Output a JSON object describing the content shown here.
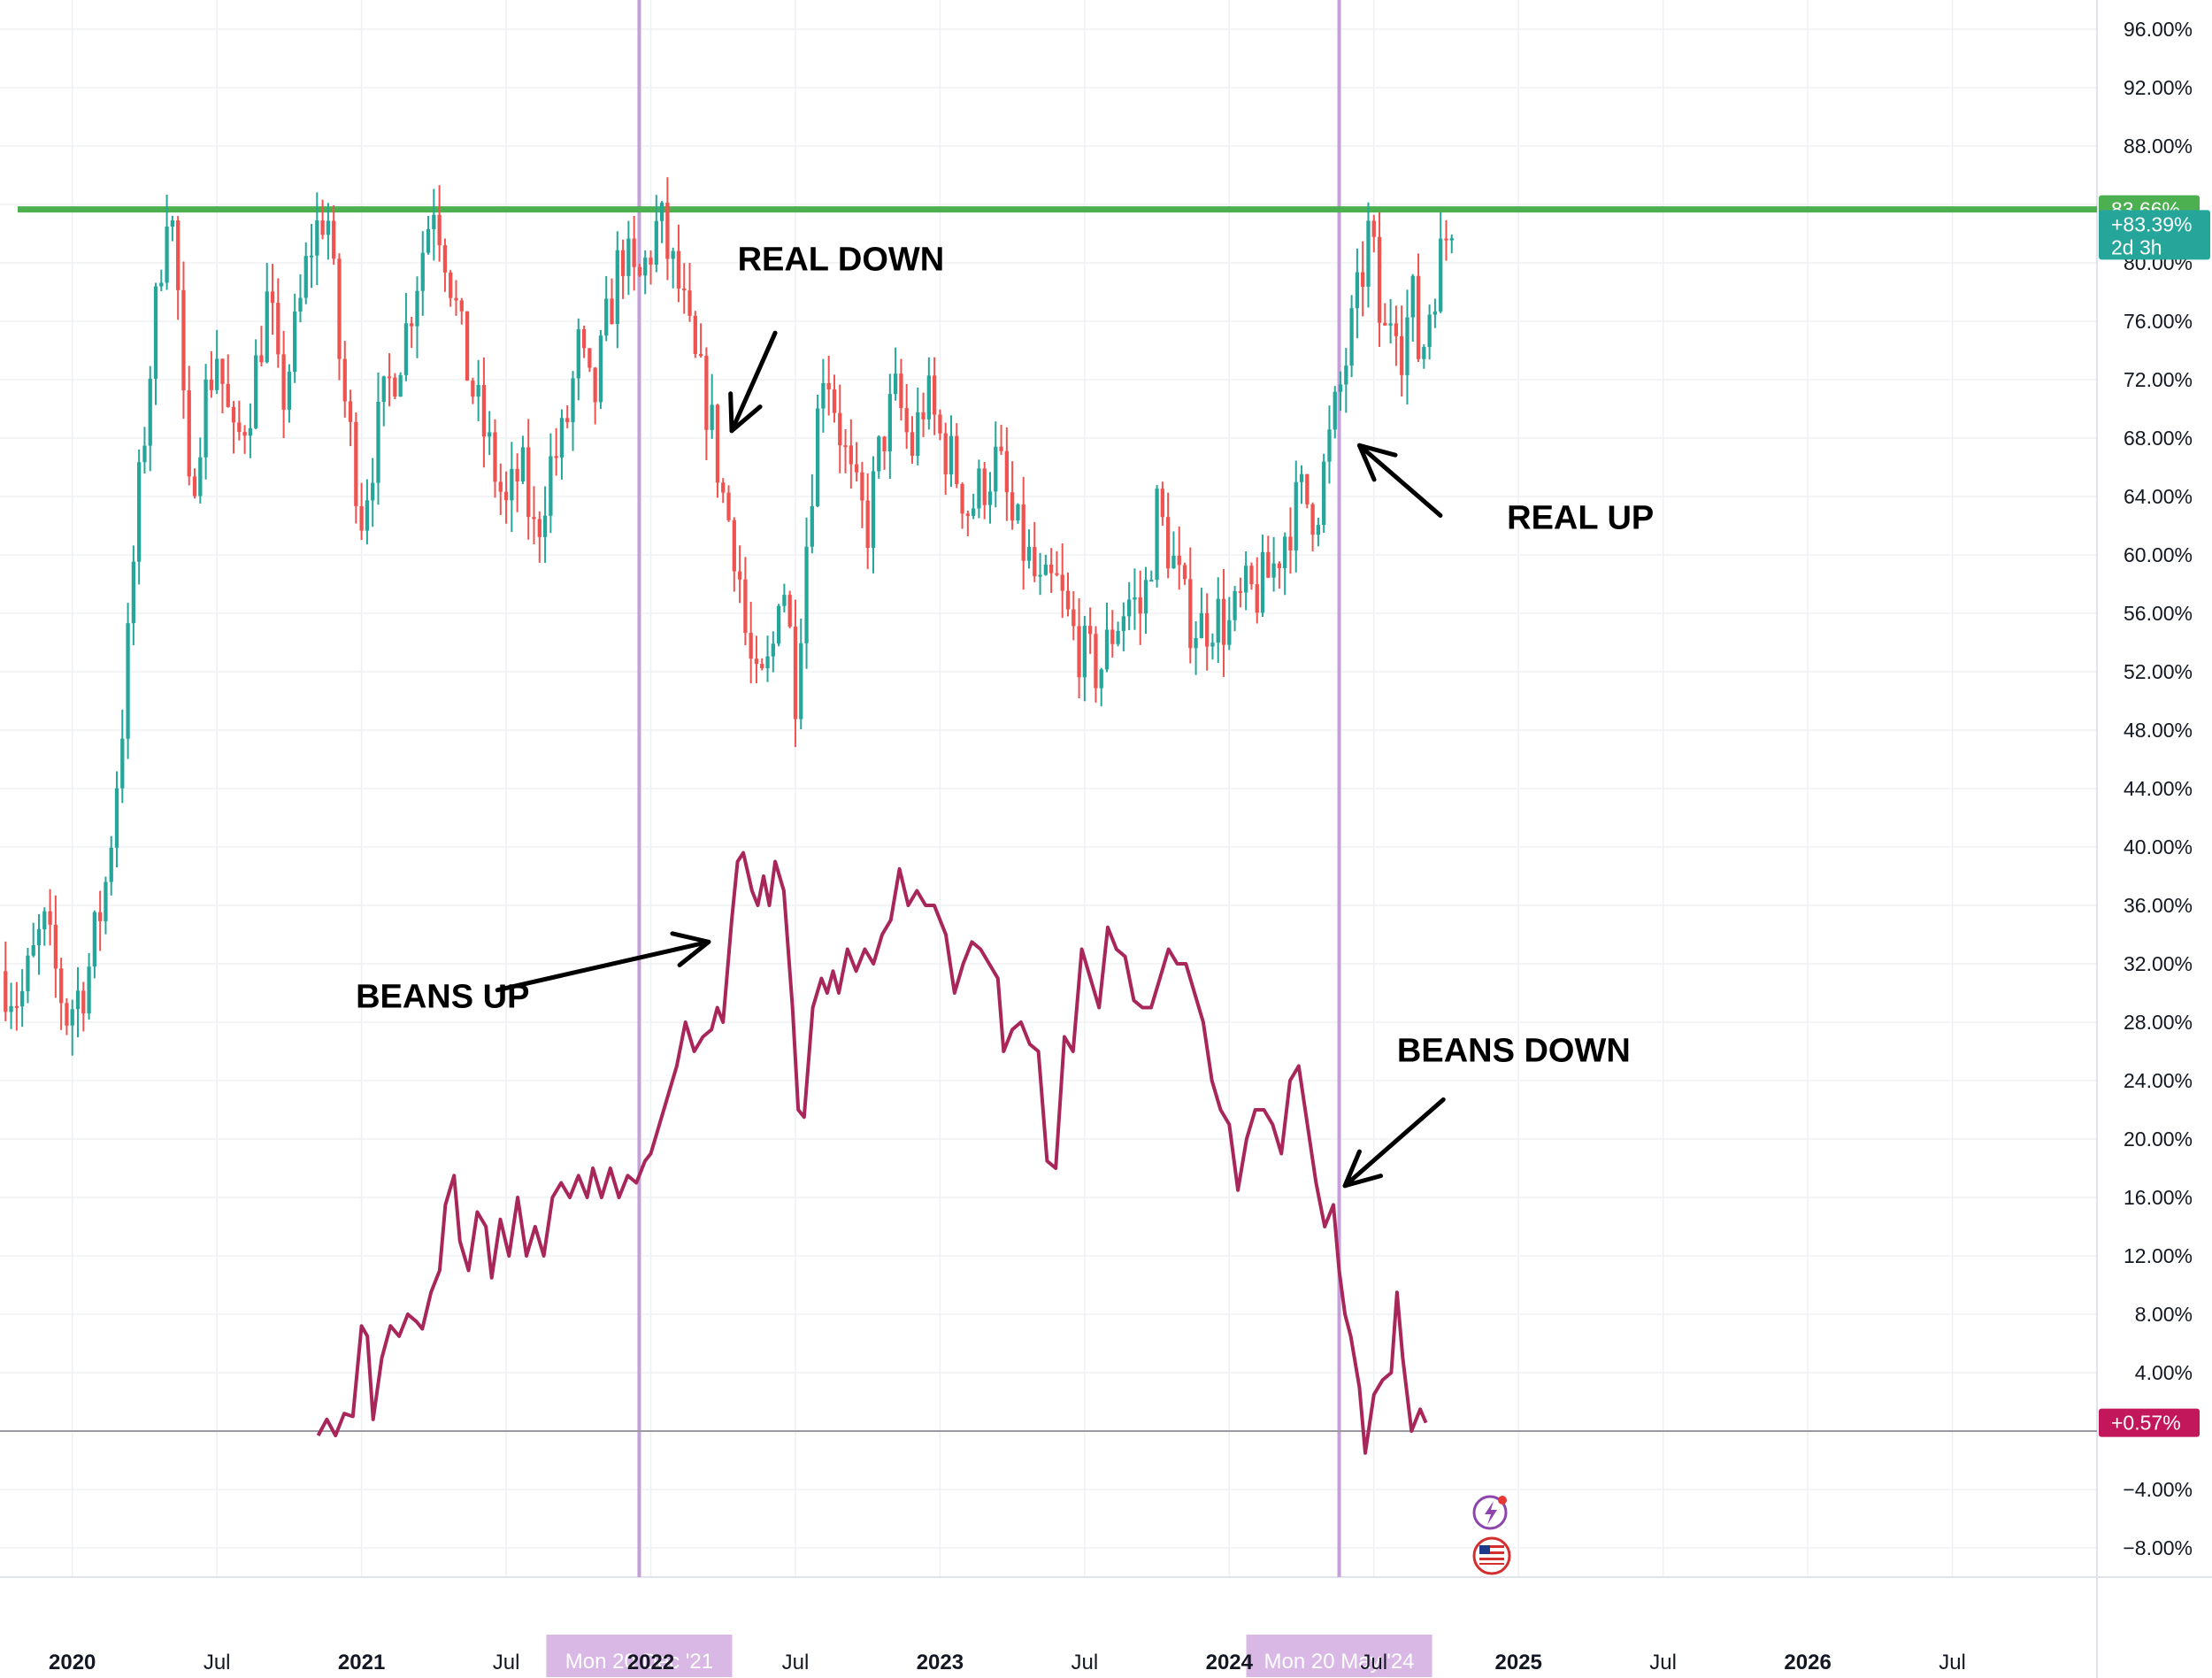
{
  "chart_data": {
    "type": "line",
    "y_axis": {
      "unit": "%",
      "ylim": [
        -10,
        98
      ],
      "ticks": [
        -8,
        -4,
        4,
        8,
        12,
        16,
        20,
        24,
        28,
        32,
        36,
        40,
        44,
        48,
        52,
        56,
        60,
        64,
        68,
        72,
        76,
        80,
        84,
        88,
        92,
        96
      ],
      "tick_labels": [
        "−8.00%",
        "−4.00%",
        "4.00%",
        "8.00%",
        "12.00%",
        "16.00%",
        "20.00%",
        "24.00%",
        "28.00%",
        "32.00%",
        "36.00%",
        "40.00%",
        "44.00%",
        "48.00%",
        "52.00%",
        "56.00%",
        "60.00%",
        "64.00%",
        "68.00%",
        "72.00%",
        "76.00%",
        "80.00%",
        "84.00%",
        "88.00%",
        "92.00%",
        "96.00%"
      ]
    },
    "x_axis": {
      "xlim": [
        2019.75,
        2027.0
      ],
      "ticks": [
        {
          "x": 2020.0,
          "label": "2020",
          "bold": true
        },
        {
          "x": 2020.5,
          "label": "Jul",
          "bold": false
        },
        {
          "x": 2021.0,
          "label": "2021",
          "bold": true
        },
        {
          "x": 2021.5,
          "label": "Jul",
          "bold": false
        },
        {
          "x": 2022.0,
          "label": "2022",
          "bold": true
        },
        {
          "x": 2022.5,
          "label": "Jul",
          "bold": false
        },
        {
          "x": 2023.0,
          "label": "2023",
          "bold": true
        },
        {
          "x": 2023.5,
          "label": "Jul",
          "bold": false
        },
        {
          "x": 2024.0,
          "label": "2024",
          "bold": true
        },
        {
          "x": 2024.5,
          "label": "Jul",
          "bold": false
        },
        {
          "x": 2025.0,
          "label": "2025",
          "bold": true
        },
        {
          "x": 2025.5,
          "label": "Jul",
          "bold": false
        },
        {
          "x": 2026.0,
          "label": "2026",
          "bold": true
        },
        {
          "x": 2026.5,
          "label": "Jul",
          "bold": false
        }
      ]
    },
    "grid": true,
    "series": [
      {
        "kind": "candlestick",
        "up_color": "#26a69a",
        "down_color": "#ef5350",
        "path": [
          [
            2019.75,
            31.5
          ],
          [
            2019.82,
            29.5
          ],
          [
            2019.9,
            34.5
          ],
          [
            2019.98,
            28.5
          ],
          [
            2020.05,
            31.0
          ],
          [
            2020.12,
            38.0
          ],
          [
            2020.18,
            50.0
          ],
          [
            2020.22,
            62.0
          ],
          [
            2020.27,
            73.0
          ],
          [
            2020.33,
            85.0
          ],
          [
            2020.36,
            80.0
          ],
          [
            2020.4,
            63.0
          ],
          [
            2020.45,
            70.0
          ],
          [
            2020.5,
            74.0
          ],
          [
            2020.56,
            67.0
          ],
          [
            2020.62,
            71.0
          ],
          [
            2020.68,
            78.0
          ],
          [
            2020.72,
            70.0
          ],
          [
            2020.78,
            76.0
          ],
          [
            2020.82,
            81.0
          ],
          [
            2020.88,
            84.0
          ],
          [
            2020.93,
            72.0
          ],
          [
            2021.0,
            63.0
          ],
          [
            2021.05,
            68.0
          ],
          [
            2021.1,
            72.0
          ],
          [
            2021.15,
            75.0
          ],
          [
            2021.2,
            80.0
          ],
          [
            2021.25,
            84.5
          ],
          [
            2021.3,
            80.0
          ],
          [
            2021.35,
            74.0
          ],
          [
            2021.4,
            70.0
          ],
          [
            2021.45,
            66.5
          ],
          [
            2021.5,
            63.0
          ],
          [
            2021.55,
            66.0
          ],
          [
            2021.6,
            61.0
          ],
          [
            2021.65,
            66.0
          ],
          [
            2021.7,
            68.0
          ],
          [
            2021.75,
            74.0
          ],
          [
            2021.8,
            70.0
          ],
          [
            2021.85,
            76.0
          ],
          [
            2021.9,
            81.0
          ],
          [
            2021.95,
            78.0
          ],
          [
            2022.0,
            81.0
          ],
          [
            2022.03,
            83.0
          ],
          [
            2022.06,
            80.5
          ],
          [
            2022.1,
            78.0
          ],
          [
            2022.15,
            73.0
          ],
          [
            2022.2,
            70.0
          ],
          [
            2022.25,
            64.0
          ],
          [
            2022.3,
            60.0
          ],
          [
            2022.33,
            54.0
          ],
          [
            2022.37,
            50.0
          ],
          [
            2022.42,
            53.0
          ],
          [
            2022.45,
            60.0
          ],
          [
            2022.5,
            51.0
          ],
          [
            2022.55,
            64.0
          ],
          [
            2022.6,
            74.0
          ],
          [
            2022.65,
            69.0
          ],
          [
            2022.7,
            64.0
          ],
          [
            2022.75,
            62.0
          ],
          [
            2022.8,
            68.0
          ],
          [
            2022.85,
            71.0
          ],
          [
            2022.9,
            67.0
          ],
          [
            2022.95,
            71.0
          ],
          [
            2023.0,
            68.0
          ],
          [
            2023.05,
            66.0
          ],
          [
            2023.1,
            63.0
          ],
          [
            2023.15,
            65.0
          ],
          [
            2023.2,
            66.5
          ],
          [
            2023.25,
            62.0
          ],
          [
            2023.3,
            60.0
          ],
          [
            2023.35,
            57.0
          ],
          [
            2023.4,
            58.0
          ],
          [
            2023.45,
            55.0
          ],
          [
            2023.5,
            53.0
          ],
          [
            2023.55,
            52.0
          ],
          [
            2023.6,
            55.0
          ],
          [
            2023.65,
            57.0
          ],
          [
            2023.7,
            56.0
          ],
          [
            2023.75,
            63.0
          ],
          [
            2023.8,
            60.0
          ],
          [
            2023.85,
            56.0
          ],
          [
            2023.9,
            55.0
          ],
          [
            2023.95,
            56.0
          ],
          [
            2024.0,
            55.0
          ],
          [
            2024.05,
            57.0
          ],
          [
            2024.1,
            57.5
          ],
          [
            2024.15,
            59.0
          ],
          [
            2024.2,
            62.0
          ],
          [
            2024.25,
            64.0
          ],
          [
            2024.3,
            63.0
          ],
          [
            2024.35,
            68.0
          ],
          [
            2024.4,
            73.0
          ],
          [
            2024.45,
            78.0
          ],
          [
            2024.48,
            82.0
          ],
          [
            2024.5,
            80.0
          ],
          [
            2024.53,
            74.0
          ],
          [
            2024.57,
            78.0
          ],
          [
            2024.6,
            74.0
          ],
          [
            2024.63,
            78.0
          ],
          [
            2024.66,
            73.0
          ],
          [
            2024.7,
            78.0
          ],
          [
            2024.74,
            81.0
          ],
          [
            2024.77,
            83.39
          ]
        ]
      },
      {
        "kind": "line",
        "color": "#a8265a",
        "path": [
          [
            2020.85,
            -0.3
          ],
          [
            2020.88,
            0.8
          ],
          [
            2020.91,
            -0.3
          ],
          [
            2020.94,
            1.2
          ],
          [
            2020.97,
            1.0
          ],
          [
            2021.0,
            7.2
          ],
          [
            2021.02,
            6.5
          ],
          [
            2021.04,
            0.8
          ],
          [
            2021.07,
            5.0
          ],
          [
            2021.1,
            7.2
          ],
          [
            2021.13,
            6.5
          ],
          [
            2021.16,
            8.0
          ],
          [
            2021.19,
            7.5
          ],
          [
            2021.21,
            7.0
          ],
          [
            2021.24,
            9.5
          ],
          [
            2021.27,
            11.0
          ],
          [
            2021.29,
            15.5
          ],
          [
            2021.32,
            17.5
          ],
          [
            2021.34,
            13.0
          ],
          [
            2021.37,
            11.0
          ],
          [
            2021.4,
            15.0
          ],
          [
            2021.43,
            14.0
          ],
          [
            2021.45,
            10.5
          ],
          [
            2021.48,
            14.5
          ],
          [
            2021.51,
            12.0
          ],
          [
            2021.54,
            16.0
          ],
          [
            2021.57,
            12.0
          ],
          [
            2021.6,
            14.0
          ],
          [
            2021.63,
            12.0
          ],
          [
            2021.66,
            16.0
          ],
          [
            2021.69,
            17.0
          ],
          [
            2021.72,
            16.0
          ],
          [
            2021.75,
            17.5
          ],
          [
            2021.78,
            16.0
          ],
          [
            2021.8,
            18.0
          ],
          [
            2021.83,
            16.0
          ],
          [
            2021.86,
            18.0
          ],
          [
            2021.89,
            16.0
          ],
          [
            2021.92,
            17.5
          ],
          [
            2021.95,
            17.0
          ],
          [
            2021.98,
            18.5
          ],
          [
            2022.0,
            19.0
          ],
          [
            2022.03,
            21.0
          ],
          [
            2022.06,
            23.0
          ],
          [
            2022.09,
            25.0
          ],
          [
            2022.12,
            28.0
          ],
          [
            2022.15,
            26.0
          ],
          [
            2022.18,
            27.0
          ],
          [
            2022.21,
            27.5
          ],
          [
            2022.23,
            29.0
          ],
          [
            2022.25,
            28.0
          ],
          [
            2022.28,
            35.0
          ],
          [
            2022.3,
            39.0
          ],
          [
            2022.32,
            39.6
          ],
          [
            2022.35,
            37.0
          ],
          [
            2022.37,
            36.0
          ],
          [
            2022.39,
            38.0
          ],
          [
            2022.41,
            36.0
          ],
          [
            2022.43,
            39.0
          ],
          [
            2022.46,
            37.0
          ],
          [
            2022.49,
            29.0
          ],
          [
            2022.51,
            22.0
          ],
          [
            2022.53,
            21.5
          ],
          [
            2022.56,
            29.0
          ],
          [
            2022.59,
            31.0
          ],
          [
            2022.61,
            30.0
          ],
          [
            2022.63,
            31.5
          ],
          [
            2022.65,
            30.0
          ],
          [
            2022.68,
            33.0
          ],
          [
            2022.71,
            31.5
          ],
          [
            2022.74,
            33.0
          ],
          [
            2022.77,
            32.0
          ],
          [
            2022.8,
            34.0
          ],
          [
            2022.83,
            35.0
          ],
          [
            2022.86,
            38.5
          ],
          [
            2022.89,
            36.0
          ],
          [
            2022.92,
            37.0
          ],
          [
            2022.95,
            36.0
          ],
          [
            2022.98,
            36.0
          ],
          [
            2023.02,
            34.0
          ],
          [
            2023.05,
            30.0
          ],
          [
            2023.08,
            32.0
          ],
          [
            2023.11,
            33.5
          ],
          [
            2023.14,
            33.0
          ],
          [
            2023.17,
            32.0
          ],
          [
            2023.2,
            31.0
          ],
          [
            2023.22,
            26.0
          ],
          [
            2023.25,
            27.5
          ],
          [
            2023.28,
            28.0
          ],
          [
            2023.31,
            26.5
          ],
          [
            2023.34,
            26.0
          ],
          [
            2023.37,
            18.5
          ],
          [
            2023.4,
            18.0
          ],
          [
            2023.43,
            27.0
          ],
          [
            2023.46,
            26.0
          ],
          [
            2023.49,
            33.0
          ],
          [
            2023.52,
            31.0
          ],
          [
            2023.55,
            29.0
          ],
          [
            2023.58,
            34.5
          ],
          [
            2023.61,
            33.0
          ],
          [
            2023.64,
            32.5
          ],
          [
            2023.67,
            29.5
          ],
          [
            2023.7,
            29.0
          ],
          [
            2023.73,
            29.0
          ],
          [
            2023.76,
            31.0
          ],
          [
            2023.79,
            33.0
          ],
          [
            2023.82,
            32.0
          ],
          [
            2023.85,
            32.0
          ],
          [
            2023.88,
            30.0
          ],
          [
            2023.91,
            28.0
          ],
          [
            2023.94,
            24.0
          ],
          [
            2023.97,
            22.0
          ],
          [
            2024.0,
            21.0
          ],
          [
            2024.03,
            16.5
          ],
          [
            2024.06,
            20.0
          ],
          [
            2024.09,
            22.0
          ],
          [
            2024.12,
            22.0
          ],
          [
            2024.15,
            21.0
          ],
          [
            2024.18,
            19.0
          ],
          [
            2024.21,
            24.0
          ],
          [
            2024.24,
            25.0
          ],
          [
            2024.27,
            21.0
          ],
          [
            2024.3,
            17.0
          ],
          [
            2024.33,
            14.0
          ],
          [
            2024.36,
            15.5
          ],
          [
            2024.38,
            11.0
          ],
          [
            2024.4,
            8.0
          ],
          [
            2024.42,
            6.5
          ],
          [
            2024.45,
            3.0
          ],
          [
            2024.47,
            -1.5
          ],
          [
            2024.5,
            2.5
          ],
          [
            2024.53,
            3.5
          ],
          [
            2024.56,
            4.0
          ],
          [
            2024.58,
            9.5
          ],
          [
            2024.6,
            5.0
          ],
          [
            2024.63,
            0.0
          ],
          [
            2024.66,
            1.5
          ],
          [
            2024.68,
            0.57
          ]
        ]
      }
    ],
    "horizontal_lines": [
      {
        "y": 83.66,
        "color": "#4caf50",
        "style": "solid",
        "label": "83.66%"
      },
      {
        "y": 0.0,
        "color": "#9a9aa0",
        "style": "solid"
      }
    ],
    "vertical_lines": [
      {
        "x": 2021.96,
        "color": "#c49fd8"
      },
      {
        "x": 2024.38,
        "color": "#c49fd8"
      }
    ],
    "price_labels": [
      {
        "y": 83.66,
        "text": "83.66%",
        "color": "#4caf50"
      },
      {
        "y": 82.4,
        "text": "+83.39%",
        "sub": "2d 3h",
        "color": "#26a69a"
      },
      {
        "y": 0.57,
        "text": "+0.57%",
        "color": "#c2185b"
      }
    ],
    "x_highlights": [
      {
        "x": 2021.96,
        "text": "Mon 20 Dec '21"
      },
      {
        "x": 2024.38,
        "text": "Mon 20 May '24"
      }
    ],
    "annotations": [
      {
        "text": "REAL DOWN",
        "x": 2022.3,
        "y": 79.5,
        "arrow": {
          "from": [
            2022.43,
            75.2
          ],
          "to": [
            2022.28,
            68.5
          ]
        }
      },
      {
        "text": "REAL UP",
        "x": 2024.96,
        "y": 61.8,
        "arrow": {
          "from": [
            2024.73,
            62.7
          ],
          "to": [
            2024.45,
            67.5
          ]
        }
      },
      {
        "text": "BEANS UP",
        "x": 2020.98,
        "y": 29.0,
        "arrow": {
          "from": [
            2021.47,
            30.2
          ],
          "to": [
            2022.2,
            33.5
          ]
        }
      },
      {
        "text": "BEANS DOWN",
        "x": 2024.58,
        "y": 25.3,
        "arrow": {
          "from": [
            2024.74,
            22.7
          ],
          "to": [
            2024.4,
            16.8
          ]
        }
      }
    ]
  }
}
